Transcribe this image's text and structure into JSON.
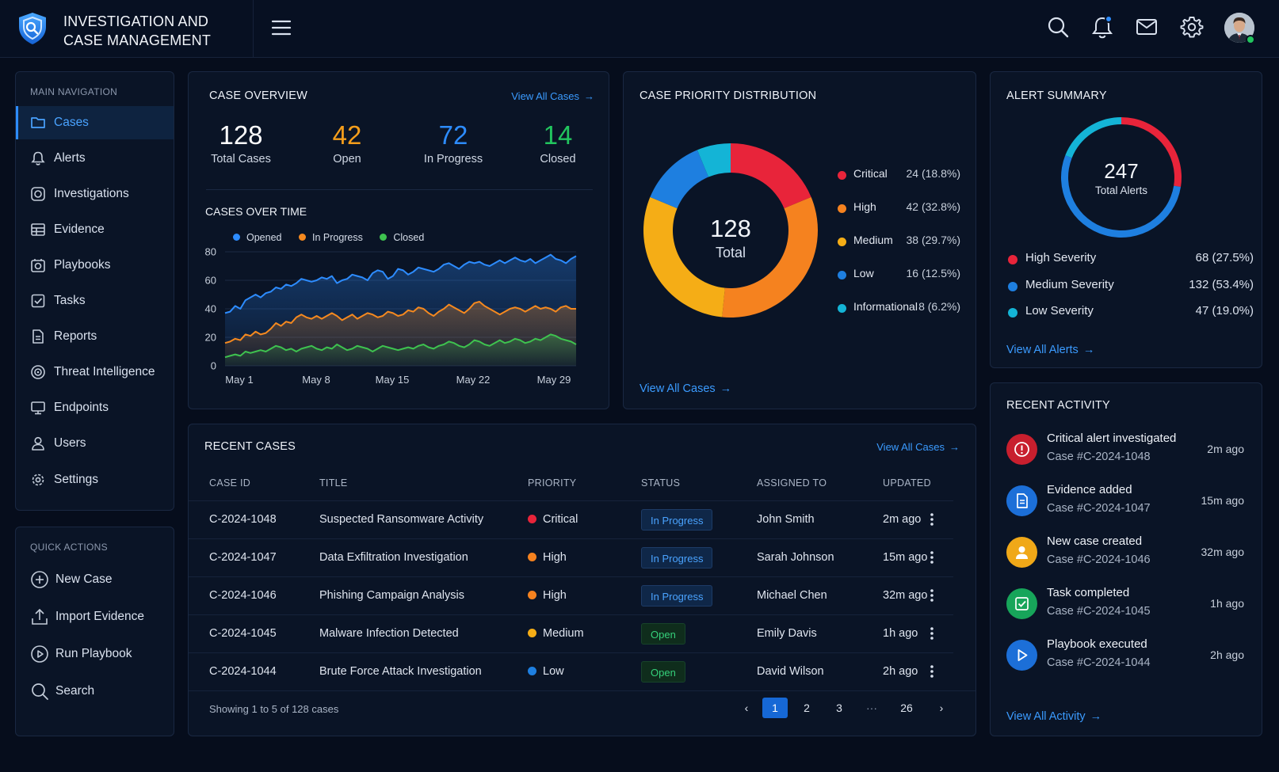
{
  "header": {
    "title_line1": "INVESTIGATION AND",
    "title_line2": "CASE MANAGEMENT",
    "icons": [
      "shield-logo-icon",
      "menu-icon",
      "search-icon",
      "bell-icon",
      "mail-icon",
      "gear-icon",
      "avatar"
    ]
  },
  "sidebar": {
    "main_label": "MAIN NAVIGATION",
    "items": [
      {
        "label": "Cases",
        "icon": "folder-icon",
        "active": true
      },
      {
        "label": "Alerts",
        "icon": "bell-icon"
      },
      {
        "label": "Investigations",
        "icon": "target-icon"
      },
      {
        "label": "Evidence",
        "icon": "archive-icon"
      },
      {
        "label": "Playbooks",
        "icon": "playbook-icon"
      },
      {
        "label": "Tasks",
        "icon": "checkbox-icon"
      },
      {
        "label": "Reports",
        "icon": "document-icon"
      },
      {
        "label": "Threat Intelligence",
        "icon": "radar-icon"
      },
      {
        "label": "Endpoints",
        "icon": "monitor-icon"
      },
      {
        "label": "Users",
        "icon": "user-icon"
      },
      {
        "label": "Settings",
        "icon": "gear-icon"
      }
    ],
    "quick_label": "QUICK ACTIONS",
    "quick": [
      {
        "label": "New Case",
        "icon": "plus-circle-icon"
      },
      {
        "label": "Import Evidence",
        "icon": "upload-icon"
      },
      {
        "label": "Run Playbook",
        "icon": "play-circle-icon"
      },
      {
        "label": "Search",
        "icon": "search-icon"
      }
    ]
  },
  "overview": {
    "title": "CASE OVERVIEW",
    "link": "View All Cases",
    "stats": [
      {
        "value": "128",
        "label": "Total Cases",
        "color": "#ffffff"
      },
      {
        "value": "42",
        "label": "Open",
        "color": "#f59e1b"
      },
      {
        "value": "72",
        "label": "In Progress",
        "color": "#2d8cff"
      },
      {
        "value": "14",
        "label": "Closed",
        "color": "#22c55e"
      }
    ],
    "chart_title": "CASES OVER TIME"
  },
  "chart_data": {
    "type": "area",
    "title": "CASES OVER TIME",
    "x_tick_labels": [
      "May 1",
      "May 8",
      "May 15",
      "May 22",
      "May 29"
    ],
    "ylim": [
      0,
      80
    ],
    "y_ticks": [
      0,
      20,
      40,
      60,
      80
    ],
    "grid": true,
    "legend_position": "top",
    "series": [
      {
        "name": "Opened",
        "color": "#2d8cff",
        "values": [
          37,
          38,
          42,
          40,
          46,
          48,
          50,
          48,
          51,
          52,
          55,
          54,
          57,
          56,
          58,
          61,
          60,
          59,
          60,
          62,
          61,
          63,
          58,
          60,
          61,
          64,
          63,
          62,
          60,
          65,
          67,
          66,
          61,
          63,
          68,
          67,
          64,
          66,
          69,
          68,
          67,
          66,
          68,
          71,
          72,
          70,
          68,
          71,
          73,
          72,
          73,
          71,
          70,
          72,
          74,
          72,
          74,
          76,
          74,
          73,
          75,
          72,
          74,
          76,
          78,
          75,
          74,
          72,
          75,
          77
        ]
      },
      {
        "name": "In Progress",
        "color": "#f5891f",
        "values": [
          16,
          17,
          19,
          18,
          22,
          21,
          24,
          22,
          23,
          26,
          30,
          28,
          31,
          30,
          34,
          36,
          34,
          33,
          35,
          33,
          35,
          37,
          35,
          32,
          34,
          36,
          33,
          35,
          37,
          36,
          34,
          35,
          38,
          37,
          35,
          36,
          39,
          38,
          41,
          40,
          37,
          35,
          38,
          40,
          43,
          41,
          39,
          37,
          40,
          44,
          45,
          42,
          40,
          38,
          36,
          38,
          40,
          41,
          40,
          38,
          40,
          42,
          40,
          41,
          40,
          38,
          41,
          42,
          40,
          40
        ]
      },
      {
        "name": "Closed",
        "color": "#3ec24f",
        "values": [
          6,
          7,
          8,
          7,
          10,
          9,
          10,
          11,
          10,
          12,
          14,
          13,
          11,
          12,
          10,
          12,
          13,
          14,
          12,
          11,
          13,
          12,
          15,
          13,
          11,
          12,
          14,
          13,
          12,
          10,
          12,
          14,
          13,
          12,
          11,
          12,
          13,
          12,
          14,
          15,
          13,
          12,
          14,
          15,
          17,
          16,
          14,
          13,
          15,
          18,
          17,
          15,
          14,
          16,
          18,
          16,
          17,
          19,
          18,
          16,
          17,
          19,
          18,
          20,
          22,
          21,
          19,
          18,
          17,
          15
        ]
      }
    ]
  },
  "priority": {
    "title": "CASE PRIORITY DISTRIBUTION",
    "total_value": "128",
    "total_label": "Total",
    "link": "View All Cases",
    "chart_data": {
      "type": "pie",
      "slices": [
        {
          "name": "Critical",
          "value": 24,
          "label": "24 (18.8%)",
          "color": "#e8243a"
        },
        {
          "name": "High",
          "value": 42,
          "label": "42 (32.8%)",
          "color": "#f5821f"
        },
        {
          "name": "Medium",
          "value": 38,
          "label": "38 (29.7%)",
          "color": "#f5ad16"
        },
        {
          "name": "Low",
          "value": 16,
          "label": "16 (12.5%)",
          "color": "#1e7fe0"
        },
        {
          "name": "Informational",
          "value": 8,
          "label": "8 (6.2%)",
          "color": "#14b4d6"
        }
      ]
    }
  },
  "alerts": {
    "title": "ALERT SUMMARY",
    "total_value": "247",
    "total_label": "Total Alerts",
    "link": "View All Alerts",
    "chart_data": {
      "type": "pie",
      "slices": [
        {
          "name": "High Severity",
          "value": 68,
          "label": "68 (27.5%)",
          "color": "#e8243a"
        },
        {
          "name": "Medium Severity",
          "value": 132,
          "label": "132 (53.4%)",
          "color": "#1e7fe0"
        },
        {
          "name": "Low Severity",
          "value": 47,
          "label": "47 (19.0%)",
          "color": "#14b4d6"
        }
      ]
    }
  },
  "recent_cases": {
    "title": "RECENT CASES",
    "link": "View All Cases",
    "columns": [
      "CASE ID",
      "TITLE",
      "PRIORITY",
      "STATUS",
      "ASSIGNED TO",
      "UPDATED"
    ],
    "rows": [
      {
        "id": "C-2024-1048",
        "title": "Suspected Ransomware Activity",
        "priority": "Critical",
        "pcolor": "#e8243a",
        "status": "In Progress",
        "stype": "prog",
        "assigned": "John Smith",
        "updated": "2m ago"
      },
      {
        "id": "C-2024-1047",
        "title": "Data Exfiltration Investigation",
        "priority": "High",
        "pcolor": "#f5821f",
        "status": "In Progress",
        "stype": "prog",
        "assigned": "Sarah Johnson",
        "updated": "15m ago"
      },
      {
        "id": "C-2024-1046",
        "title": "Phishing Campaign Analysis",
        "priority": "High",
        "pcolor": "#f5821f",
        "status": "In Progress",
        "stype": "prog",
        "assigned": "Michael Chen",
        "updated": "32m ago"
      },
      {
        "id": "C-2024-1045",
        "title": "Malware Infection Detected",
        "priority": "Medium",
        "pcolor": "#f5ad16",
        "status": "Open",
        "stype": "open",
        "assigned": "Emily Davis",
        "updated": "1h ago"
      },
      {
        "id": "C-2024-1044",
        "title": "Brute Force Attack Investigation",
        "priority": "Low",
        "pcolor": "#1e7fe0",
        "status": "Open",
        "stype": "open",
        "assigned": "David Wilson",
        "updated": "2h ago"
      }
    ],
    "showing": "Showing 1 to 5 of 128 cases",
    "pages": [
      "1",
      "2",
      "3",
      "···",
      "26"
    ],
    "current_page": "1"
  },
  "activity": {
    "title": "RECENT ACTIVITY",
    "link": "View All Activity",
    "items": [
      {
        "title": "Critical alert investigated",
        "sub": "Case #C-2024-1048",
        "time": "2m ago",
        "color": "#d0212f",
        "icon": "alert-circle-icon"
      },
      {
        "title": "Evidence added",
        "sub": "Case #C-2024-1047",
        "time": "15m ago",
        "color": "#1c6fd8",
        "icon": "file-icon"
      },
      {
        "title": "New case created",
        "sub": "Case #C-2024-1046",
        "time": "32m ago",
        "color": "#f0a818",
        "icon": "user-icon"
      },
      {
        "title": "Task completed",
        "sub": "Case #C-2024-1045",
        "time": "1h ago",
        "color": "#17a55a",
        "icon": "task-check-icon"
      },
      {
        "title": "Playbook executed",
        "sub": "Case #C-2024-1044",
        "time": "2h ago",
        "color": "#1c6fd8",
        "icon": "play-icon"
      }
    ]
  }
}
